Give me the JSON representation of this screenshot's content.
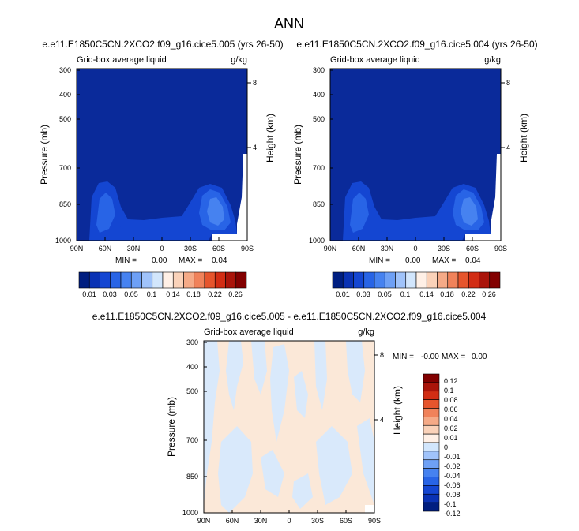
{
  "page_title": "ANN",
  "palette": {
    "abs": [
      "#001e80",
      "#0a32b4",
      "#1446d2",
      "#2864e6",
      "#4682f0",
      "#6ea0f5",
      "#a0c3fa",
      "#d2e6fc",
      "#fff0e6",
      "#fad2b9",
      "#f5aa87",
      "#f0825a",
      "#e6552d",
      "#d22d14",
      "#aa140a",
      "#820000"
    ],
    "diff": [
      "#001e80",
      "#0a32b4",
      "#1446d2",
      "#2864e6",
      "#4682f0",
      "#6ea0f5",
      "#a0c3fa",
      "#d2e6fc",
      "#fff0e6",
      "#fad2b9",
      "#f5aa87",
      "#f0825a",
      "#e6552d",
      "#d22d14",
      "#aa140a",
      "#820000"
    ],
    "background_abs": "#0a2a9a",
    "background_diff": "#fbe8d8"
  },
  "chart_data": [
    {
      "type": "heatmap",
      "title": "e.e11.E1850C5CN.2XCO2.f09_g16.cice5.005 (yrs 26-50)",
      "left_string": "Grid-box average liquid",
      "right_string": "g/kg",
      "ylabel": "Pressure (mb)",
      "y2label": "Height (km)",
      "x_ticks": [
        "90N",
        "60N",
        "30N",
        "0",
        "30S",
        "60S",
        "90S"
      ],
      "y_ticks": [
        "300",
        "400",
        "500",
        "700",
        "850",
        "1000"
      ],
      "y2_ticks": [
        "8",
        "4"
      ],
      "xlim": [
        90,
        -90
      ],
      "ylim": [
        1000,
        300
      ],
      "yscale": "log",
      "min_label": "MIN =",
      "min_value": "0.00",
      "max_label": "MAX =",
      "max_value": "0.04",
      "colorbar_labels": [
        "0.01",
        "0.03",
        "0.05",
        "0.1",
        "0.14",
        "0.18",
        "0.22",
        "0.26"
      ],
      "colorbar_levels": [
        0.01,
        0.02,
        0.03,
        0.04,
        0.05,
        0.07,
        0.1,
        0.12,
        0.14,
        0.16,
        0.18,
        0.2,
        0.22,
        0.24,
        0.26
      ]
    },
    {
      "type": "heatmap",
      "title": "e.e11.E1850C5CN.2XCO2.f09_g16.cice5.004 (yrs 26-50)",
      "left_string": "Grid-box average liquid",
      "right_string": "g/kg",
      "ylabel": "Pressure (mb)",
      "y2label": "Height (km)",
      "x_ticks": [
        "90N",
        "60N",
        "30N",
        "0",
        "30S",
        "60S",
        "90S"
      ],
      "y_ticks": [
        "300",
        "400",
        "500",
        "700",
        "850",
        "1000"
      ],
      "y2_ticks": [
        "8",
        "4"
      ],
      "xlim": [
        90,
        -90
      ],
      "ylim": [
        1000,
        300
      ],
      "yscale": "log",
      "min_label": "MIN =",
      "min_value": "0.00",
      "max_label": "MAX =",
      "max_value": "0.04",
      "colorbar_labels": [
        "0.01",
        "0.03",
        "0.05",
        "0.1",
        "0.14",
        "0.18",
        "0.22",
        "0.26"
      ],
      "colorbar_levels": [
        0.01,
        0.02,
        0.03,
        0.04,
        0.05,
        0.07,
        0.1,
        0.12,
        0.14,
        0.16,
        0.18,
        0.2,
        0.22,
        0.24,
        0.26
      ]
    },
    {
      "type": "heatmap",
      "title": "e.e11.E1850C5CN.2XCO2.f09_g16.cice5.005 - e.e11.E1850C5CN.2XCO2.f09_g16.cice5.004",
      "left_string": "Grid-box average liquid",
      "right_string": "g/kg",
      "ylabel": "Pressure (mb)",
      "y2label": "Height (km)",
      "x_ticks": [
        "90N",
        "60N",
        "30N",
        "0",
        "30S",
        "60S",
        "90S"
      ],
      "y_ticks": [
        "300",
        "400",
        "500",
        "700",
        "850",
        "1000"
      ],
      "y2_ticks": [
        "8",
        "4"
      ],
      "xlim": [
        90,
        -90
      ],
      "ylim": [
        1000,
        300
      ],
      "yscale": "log",
      "min_label": "MIN =",
      "min_value": "-0.00",
      "max_label": "MAX =",
      "max_value": "0.00",
      "colorbar_labels": [
        "0.12",
        "0.1",
        "0.08",
        "0.06",
        "0.04",
        "0.02",
        "0.01",
        "0",
        "-0.01",
        "-0.02",
        "-0.04",
        "-0.06",
        "-0.08",
        "-0.1",
        "-0.12"
      ],
      "colorbar_levels": [
        -0.12,
        -0.1,
        -0.08,
        -0.06,
        -0.04,
        -0.02,
        -0.01,
        0,
        0.01,
        0.02,
        0.04,
        0.06,
        0.08,
        0.1,
        0.12
      ]
    }
  ]
}
